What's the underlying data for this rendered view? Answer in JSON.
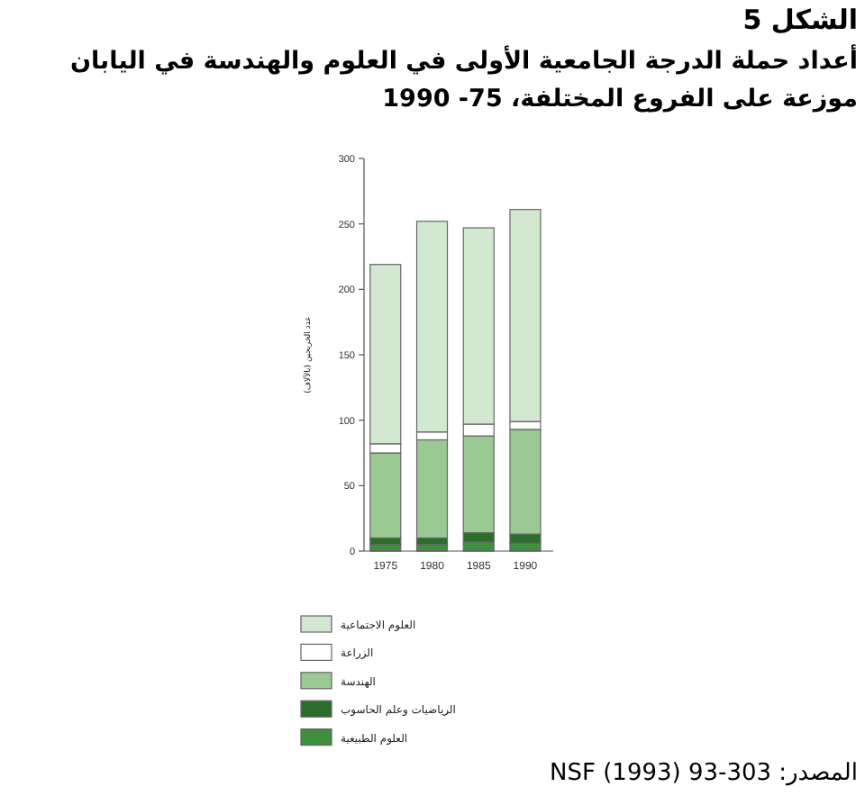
{
  "chart_data": {
    "type": "bar",
    "stacked": true,
    "title": "الشكل 5",
    "subtitle": "أعداد حملة الدرجة الجامعية الأولى في العلوم والهندسة في اليابان موزعة على الفروع المختلفة، 75- 1990",
    "ylabel": "عدد الخريجين (بالآلاف)",
    "categories": [
      "1975",
      "1980",
      "1985",
      "1990"
    ],
    "series": [
      {
        "name": "العلوم الطبيعية",
        "color": "#3f8f3f",
        "values": [
          5,
          5,
          7,
          6
        ]
      },
      {
        "name": "الرياضيات وعلم الحاسوب",
        "color": "#2b6e2b",
        "values": [
          5,
          5,
          7,
          7
        ]
      },
      {
        "name": "الهندسة",
        "color": "#9bc994",
        "values": [
          65,
          75,
          74,
          80
        ]
      },
      {
        "name": "الزراعة",
        "color": "#ffffff",
        "values": [
          7,
          6,
          9,
          6
        ]
      },
      {
        "name": "العلوم الاجتماعية",
        "color": "#d2e8d0",
        "values": [
          137,
          161,
          150,
          162
        ]
      }
    ],
    "ylim": [
      0,
      300
    ],
    "yticks": [
      0,
      50,
      100,
      150,
      200,
      250,
      300
    ],
    "legend": "bottom",
    "annotations": [
      "المصدر: NSF (1993) 93-303"
    ]
  }
}
